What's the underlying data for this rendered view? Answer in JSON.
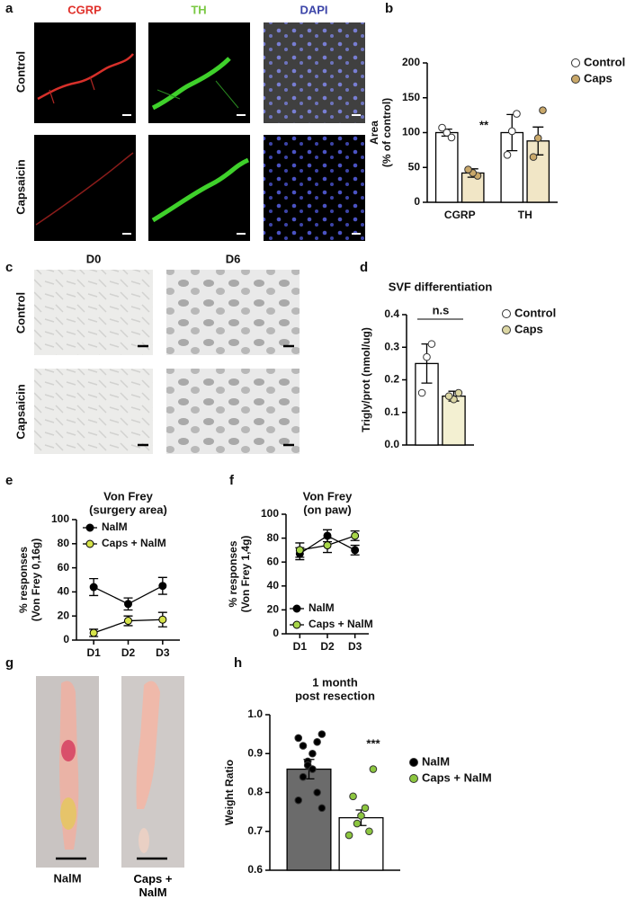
{
  "panel_labels": [
    "a",
    "b",
    "c",
    "d",
    "e",
    "f",
    "g",
    "h"
  ],
  "image_panels": {
    "a": {
      "columns": [
        "CGRP",
        "TH",
        "DAPI"
      ],
      "rows": [
        "Control",
        "Capsaicin"
      ]
    },
    "c": {
      "columns": [
        "D0",
        "D6"
      ],
      "rows": [
        "Control",
        "Capsaicin"
      ]
    },
    "g": {
      "labels": [
        "NalM",
        "Caps + NalM"
      ]
    }
  },
  "chart_data": [
    {
      "type": "bar",
      "ylabel": [
        "Area",
        "(% of control)"
      ],
      "categories": [
        "CGRP",
        "TH"
      ],
      "ylim": [
        0,
        200
      ],
      "yticks": [
        0,
        50,
        100,
        150,
        200
      ],
      "annotations": [
        "**"
      ],
      "series": [
        {
          "name": "Control",
          "color": "#ffffff",
          "point_color": "#ffffff",
          "values": [
            100,
            100
          ],
          "errors": [
            5,
            26
          ],
          "points": [
            [
              93,
              100,
              107
            ],
            [
              127,
              102,
              68
            ]
          ]
        },
        {
          "name": "Caps",
          "color": "#f1e6c6",
          "point_color": "#c9a86a",
          "values": [
            42,
            88
          ],
          "errors": [
            6,
            20
          ],
          "points": [
            [
              38,
              42,
              47
            ],
            [
              132,
              92,
              65
            ]
          ]
        }
      ]
    },
    {
      "type": "bar",
      "title": "SVF differentiation",
      "ylabel": [
        "Trigly/prot (nmol/ug)"
      ],
      "categories": [
        null
      ],
      "ylim": [
        0,
        0.4
      ],
      "yticks": [
        {
          "value": 0,
          "label": "0.0"
        },
        0.1,
        0.2,
        0.3,
        0.4
      ],
      "annotations": [
        "n.s"
      ],
      "series": [
        {
          "name": "Control",
          "color": "#ffffff",
          "point_color": "#ffffff",
          "values": [
            0.25
          ],
          "errors": [
            0.06
          ],
          "points": [
            [
              0.31,
              0.27,
              0.16
            ]
          ]
        },
        {
          "name": "Caps",
          "color": "#f3f0d2",
          "point_color": "#dcd7a4",
          "values": [
            0.15
          ],
          "errors": [
            0.015
          ],
          "points": [
            [
              0.16,
              0.14,
              0.15
            ]
          ]
        }
      ]
    },
    {
      "type": "line",
      "title": "Von Frey",
      "subtitle": "(surgery area)",
      "ylabel": [
        "% responses",
        "(Von Frey 0,16g)"
      ],
      "categories": [
        "D1",
        "D2",
        "D3"
      ],
      "ylim": [
        0,
        100
      ],
      "yticks": [
        0,
        20,
        40,
        60,
        80,
        100
      ],
      "series": [
        {
          "name": "NalM",
          "color": "#000000",
          "values": [
            44,
            30,
            45
          ],
          "errors": [
            7,
            5,
            7
          ]
        },
        {
          "name": "Caps + NalM",
          "color": "#d6e34a",
          "values": [
            6,
            16,
            17
          ],
          "errors": [
            3,
            4,
            6
          ]
        }
      ]
    },
    {
      "type": "line",
      "title": "Von Frey",
      "subtitle": "(on paw)",
      "ylabel": [
        "% responses",
        "(Von Frey 1,4g)"
      ],
      "categories": [
        "D1",
        "D2",
        "D3"
      ],
      "ylim": [
        0,
        100
      ],
      "yticks": [
        0,
        20,
        40,
        60,
        80,
        100
      ],
      "series": [
        {
          "name": "NalM",
          "color": "#000000",
          "values": [
            67,
            82,
            70
          ],
          "errors": [
            5,
            5,
            4
          ]
        },
        {
          "name": "Caps + NalM",
          "color": "#a8d64a",
          "values": [
            70,
            74,
            82
          ],
          "errors": [
            6,
            6,
            4
          ]
        }
      ]
    },
    {
      "type": "bar",
      "title": "1 month",
      "subtitle": "post resection",
      "ylabel": [
        "Weight Ratio"
      ],
      "categories": [
        null
      ],
      "ylim": [
        0.6,
        1.0
      ],
      "yticks": [
        0.6,
        0.7,
        0.8,
        0.9,
        {
          "value": 1.0,
          "label": "1.0"
        }
      ],
      "annotations": [
        "***"
      ],
      "series": [
        {
          "name": "NalM",
          "color": "#6b6b6b",
          "point_color": "#000000",
          "values": [
            0.86
          ],
          "errors": [
            0.025
          ],
          "points": [
            [
              0.95,
              0.94,
              0.93,
              0.92,
              0.9,
              0.88,
              0.87,
              0.86,
              0.84,
              0.8,
              0.78,
              0.76
            ]
          ]
        },
        {
          "name": "Caps + NalM",
          "color": "#ffffff",
          "point_color": "#8cc63f",
          "values": [
            0.735
          ],
          "errors": [
            0.02
          ],
          "points": [
            [
              0.86,
              0.79,
              0.76,
              0.74,
              0.72,
              0.7,
              0.69
            ]
          ]
        }
      ]
    }
  ]
}
